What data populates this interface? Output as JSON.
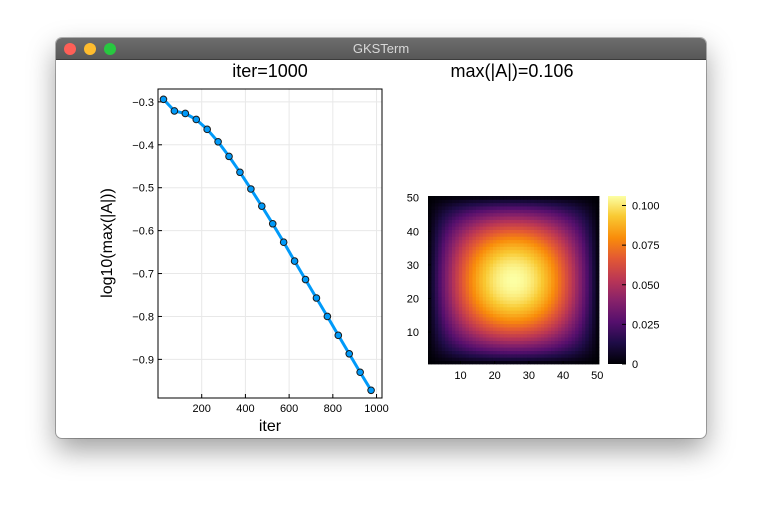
{
  "window": {
    "title": "GKSTerm"
  },
  "colors": {
    "line": "#009af9",
    "marker_edge": "#1a1a1a",
    "frame": "#000000",
    "grid": "#e8e8e8"
  },
  "chart_data": [
    {
      "type": "line",
      "title": "iter=1000",
      "xlabel": "iter",
      "ylabel": "log10(max(|A|))",
      "grid": true,
      "legend": "none",
      "xlim": [
        0,
        1025
      ],
      "ylim": [
        -0.99,
        -0.27
      ],
      "x_ticks": [
        200,
        400,
        600,
        800,
        1000
      ],
      "x_tick_labels": [
        "200",
        "400",
        "600",
        "800",
        "1000"
      ],
      "y_ticks": [
        -0.3,
        -0.4,
        -0.5,
        -0.6,
        -0.7,
        -0.8,
        -0.9
      ],
      "y_tick_labels": [
        "−0.3",
        "−0.4",
        "−0.5",
        "−0.6",
        "−0.7",
        "−0.8",
        "−0.9"
      ],
      "series": [
        {
          "x": [
            25,
            75,
            125,
            175,
            225,
            275,
            325,
            375,
            425,
            475,
            525,
            575,
            625,
            675,
            725,
            775,
            825,
            875,
            925,
            975
          ],
          "y": [
            -0.294,
            -0.321,
            -0.327,
            -0.341,
            -0.364,
            -0.393,
            -0.427,
            -0.464,
            -0.503,
            -0.543,
            -0.584,
            -0.627,
            -0.671,
            -0.714,
            -0.757,
            -0.8,
            -0.844,
            -0.887,
            -0.93,
            -0.972
          ]
        }
      ]
    },
    {
      "type": "heatmap",
      "title": "max(|A|)=0.106",
      "xlim": [
        0.5,
        50.5
      ],
      "ylim": [
        0.5,
        50.5
      ],
      "x_tick_labels": [
        "10",
        "20",
        "30",
        "40",
        "50"
      ],
      "y_tick_labels": [
        "10",
        "20",
        "30",
        "40",
        "50"
      ],
      "grid_size": 50,
      "max_value": 0.106,
      "colormap": "inferno",
      "colorbar": {
        "range": [
          0,
          0.106
        ],
        "tick_values": [
          0,
          0.025,
          0.05,
          0.075,
          0.1
        ],
        "tick_labels": [
          "0",
          "0.025",
          "0.050",
          "0.075",
          "0.100"
        ]
      }
    }
  ]
}
